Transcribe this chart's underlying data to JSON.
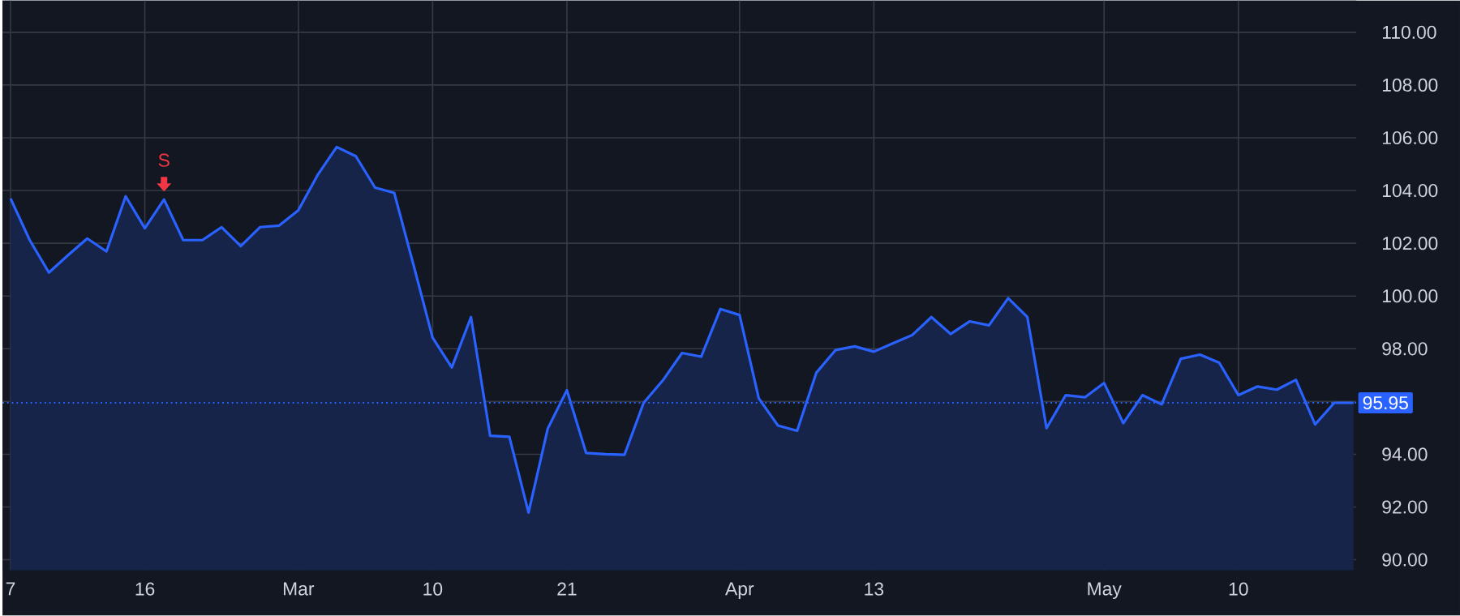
{
  "chart_data": {
    "type": "area",
    "categories": [
      "7",
      null,
      null,
      null,
      null,
      null,
      null,
      "16",
      null,
      null,
      null,
      null,
      null,
      null,
      null,
      "Mar",
      null,
      null,
      null,
      null,
      null,
      null,
      "10",
      null,
      null,
      null,
      null,
      null,
      null,
      "21",
      null,
      null,
      null,
      null,
      null,
      null,
      null,
      null,
      "Apr",
      null,
      null,
      null,
      null,
      null,
      null,
      "13",
      null,
      null,
      null,
      null,
      null,
      null,
      null,
      null,
      null,
      null,
      null,
      "May",
      null,
      null,
      null,
      null,
      null,
      null,
      "10",
      null,
      null,
      null,
      null,
      null,
      null
    ],
    "series": [
      {
        "color": "#2962ff",
        "values": [
          103.7,
          102.12,
          100.89,
          101.55,
          102.18,
          101.69,
          103.78,
          102.57,
          103.66,
          102.12,
          102.12,
          102.61,
          101.89,
          102.61,
          102.67,
          103.25,
          104.58,
          105.65,
          105.3,
          104.11,
          103.91,
          101.19,
          98.42,
          97.29,
          99.2,
          94.7,
          94.66,
          91.79,
          94.97,
          96.43,
          94.05,
          94.0,
          93.98,
          95.95,
          96.8,
          97.84,
          97.7,
          99.51,
          99.28,
          96.12,
          95.09,
          94.89,
          97.09,
          97.95,
          98.09,
          97.89,
          98.21,
          98.52,
          99.2,
          98.56,
          99.04,
          98.89,
          99.92,
          99.2,
          94.99,
          96.24,
          96.16,
          96.7,
          95.18,
          96.24,
          95.89,
          97.62,
          97.78,
          97.47,
          96.24,
          96.57,
          96.45,
          96.82,
          95.13,
          95.95,
          95.95
        ]
      }
    ],
    "ylim": [
      89.6,
      111.2
    ],
    "yticks": [
      {
        "value": 90,
        "label": "90.00"
      },
      {
        "value": 92,
        "label": "92.00"
      },
      {
        "value": 94,
        "label": "94.00"
      },
      {
        "value": 96,
        "label": null
      },
      {
        "value": 98,
        "label": "98.00"
      },
      {
        "value": 100,
        "label": "100.00"
      },
      {
        "value": 102,
        "label": "102.00"
      },
      {
        "value": 104,
        "label": "104.00"
      },
      {
        "value": 106,
        "label": "106.00"
      },
      {
        "value": 108,
        "label": "108.00"
      },
      {
        "value": 110,
        "label": "110.00"
      }
    ],
    "ref_lines": [
      {
        "axis": "y",
        "value": 95.95,
        "label": "95.95",
        "color": "#2962ff",
        "line_style": "dotted"
      }
    ],
    "annotations": [
      {
        "text": "S",
        "y": 103.66
      }
    ],
    "grid": true
  }
}
